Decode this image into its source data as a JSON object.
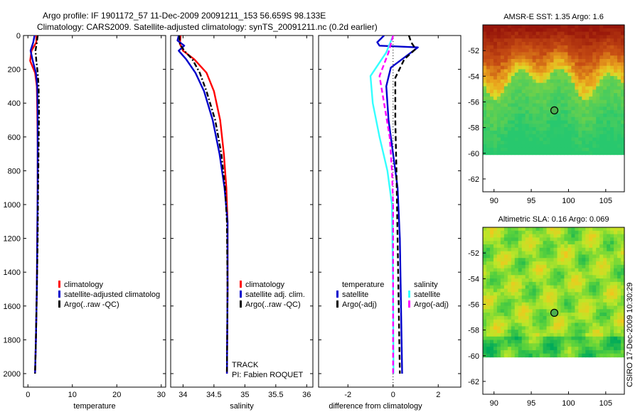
{
  "title_line1": "Argo profile: IF 1901172_57 11-Dec-2009 20091211_153 56.659S 98.133E",
  "title_line2": "Climatology: CARS2009. Satellite-adjusted climatology: synTS_20091211.nc (0.2d earlier)",
  "colors": {
    "red": "#ff0000",
    "blue": "#0000cc",
    "black": "#000000",
    "cyan": "#33ffff",
    "magenta": "#ff00ff"
  },
  "chart_data": [
    {
      "type": "line",
      "xlabel": "temperature",
      "xlim": [
        -1,
        31
      ],
      "ylim": [
        2080,
        0
      ],
      "xticks": [
        0,
        10,
        20,
        30
      ],
      "xtick_labels": [
        "0",
        "10",
        "20",
        "30"
      ],
      "yticks": [
        0,
        200,
        400,
        600,
        800,
        1000,
        1200,
        1400,
        1600,
        1800,
        2000
      ],
      "ytick_labels": [
        "0",
        "200",
        "400",
        "600",
        "800",
        "1000",
        "1200",
        "1400",
        "1600",
        "1800",
        "2000"
      ],
      "legend": [
        "climatology",
        "satellite-adjusted climatolog",
        "Argo(..raw -QC)"
      ],
      "series": [
        {
          "name": "climatology",
          "style": "solid",
          "color": "#ff0000",
          "points": [
            [
              1.9,
              0
            ],
            [
              1.9,
              40
            ],
            [
              0.8,
              90
            ],
            [
              0.5,
              150
            ],
            [
              1.6,
              220
            ],
            [
              2.0,
              300
            ],
            [
              2.1,
              450
            ],
            [
              2.2,
              650
            ],
            [
              2.2,
              900
            ],
            [
              2.1,
              1200
            ],
            [
              2.0,
              1500
            ],
            [
              1.8,
              1800
            ],
            [
              1.6,
              2000
            ]
          ]
        },
        {
          "name": "satellite-adjusted climatology",
          "style": "solid",
          "color": "#0000cc",
          "points": [
            [
              1.5,
              0
            ],
            [
              1.2,
              40
            ],
            [
              0.6,
              90
            ],
            [
              1.1,
              150
            ],
            [
              1.8,
              220
            ],
            [
              2.1,
              300
            ],
            [
              2.2,
              450
            ],
            [
              2.2,
              650
            ],
            [
              2.2,
              900
            ],
            [
              2.1,
              1200
            ],
            [
              2.0,
              1500
            ],
            [
              1.8,
              1800
            ],
            [
              1.6,
              2000
            ]
          ]
        },
        {
          "name": "Argo",
          "style": "dashdot",
          "color": "#000000",
          "points": [
            [
              2.2,
              0
            ],
            [
              2.0,
              40
            ],
            [
              1.7,
              90
            ],
            [
              1.9,
              150
            ],
            [
              2.2,
              220
            ],
            [
              2.4,
              300
            ],
            [
              2.5,
              450
            ],
            [
              2.4,
              650
            ],
            [
              2.3,
              900
            ],
            [
              2.2,
              1200
            ],
            [
              2.0,
              1500
            ],
            [
              1.8,
              1800
            ],
            [
              1.6,
              2000
            ]
          ]
        }
      ]
    },
    {
      "type": "line",
      "xlabel": "salinity",
      "xlim": [
        33.8,
        36.1
      ],
      "ylim": [
        2080,
        0
      ],
      "xticks": [
        34,
        34.5,
        35,
        35.5,
        36
      ],
      "xtick_labels": [
        "34",
        "34.5",
        "35",
        "35.5",
        "36"
      ],
      "legend": [
        "climatology",
        "satellite adj. clim.",
        "Argo(..raw -QC)"
      ],
      "annotations": [
        "TRACK",
        "PI: Fabien ROQUET"
      ],
      "series": [
        {
          "name": "climatology",
          "style": "solid",
          "color": "#ff0000",
          "points": [
            [
              33.96,
              0
            ],
            [
              33.95,
              50
            ],
            [
              34.0,
              90
            ],
            [
              34.18,
              140
            ],
            [
              34.38,
              220
            ],
            [
              34.5,
              330
            ],
            [
              34.6,
              500
            ],
            [
              34.66,
              700
            ],
            [
              34.7,
              900
            ],
            [
              34.72,
              1100
            ],
            [
              34.72,
              1500
            ],
            [
              34.71,
              2000
            ]
          ]
        },
        {
          "name": "satellite adj. clim.",
          "style": "solid",
          "color": "#0000cc",
          "points": [
            [
              33.93,
              0
            ],
            [
              33.91,
              30
            ],
            [
              34.02,
              60
            ],
            [
              33.93,
              90
            ],
            [
              34.05,
              140
            ],
            [
              34.2,
              220
            ],
            [
              34.34,
              330
            ],
            [
              34.48,
              500
            ],
            [
              34.59,
              700
            ],
            [
              34.67,
              900
            ],
            [
              34.72,
              1100
            ],
            [
              34.72,
              1500
            ],
            [
              34.71,
              2000
            ]
          ]
        },
        {
          "name": "Argo",
          "style": "dashdot",
          "color": "#000000",
          "points": [
            [
              33.94,
              0
            ],
            [
              33.95,
              50
            ],
            [
              34.02,
              90
            ],
            [
              34.15,
              140
            ],
            [
              34.27,
              220
            ],
            [
              34.38,
              330
            ],
            [
              34.52,
              500
            ],
            [
              34.62,
              700
            ],
            [
              34.68,
              900
            ],
            [
              34.71,
              1100
            ],
            [
              34.72,
              1500
            ],
            [
              34.71,
              2000
            ]
          ]
        }
      ]
    },
    {
      "type": "line",
      "xlabel": "difference from climatology",
      "xlim": [
        -3.3,
        3.0
      ],
      "ylim": [
        2080,
        0
      ],
      "xticks": [
        -2,
        0,
        2
      ],
      "xtick_labels": [
        "-2",
        "0",
        "2"
      ],
      "legend_headers": [
        "temperature",
        "salinity"
      ],
      "legend_temperature": [
        "satellite",
        "Argo(-adj)"
      ],
      "legend_salinity": [
        "satellite",
        "Argo(-adj)"
      ],
      "series": [
        {
          "name": "temperature satellite",
          "style": "solid",
          "color": "#0000cc",
          "points": [
            [
              -0.4,
              0
            ],
            [
              -0.7,
              40
            ],
            [
              -0.6,
              60
            ],
            [
              1.1,
              70
            ],
            [
              0.7,
              110
            ],
            [
              -0.1,
              190
            ],
            [
              -0.3,
              300
            ],
            [
              -0.2,
              500
            ],
            [
              0.0,
              700
            ],
            [
              0.2,
              900
            ],
            [
              0.3,
              1200
            ],
            [
              0.35,
              1600
            ],
            [
              0.4,
              2000
            ]
          ]
        },
        {
          "name": "temperature Argo(-adj)",
          "style": "dashed",
          "color": "#000000",
          "points": [
            [
              0.7,
              0
            ],
            [
              0.8,
              40
            ],
            [
              1.0,
              80
            ],
            [
              0.5,
              140
            ],
            [
              0.1,
              250
            ],
            [
              0.1,
              500
            ],
            [
              0.15,
              800
            ],
            [
              0.2,
              1200
            ],
            [
              0.25,
              1600
            ],
            [
              0.3,
              2000
            ]
          ]
        },
        {
          "name": "salinity satellite",
          "style": "solid",
          "color": "#33ffff",
          "points": [
            [
              0.0,
              0
            ],
            [
              -0.3,
              100
            ],
            [
              -1.0,
              240
            ],
            [
              -0.9,
              400
            ],
            [
              -0.6,
              600
            ],
            [
              -0.25,
              800
            ],
            [
              -0.05,
              1000
            ],
            [
              0.0,
              1500
            ],
            [
              0.02,
              2000
            ]
          ]
        },
        {
          "name": "salinity Argo(-adj)",
          "style": "dashed",
          "color": "#ff00ff",
          "points": [
            [
              0.0,
              0
            ],
            [
              -0.2,
              100
            ],
            [
              -0.6,
              240
            ],
            [
              -0.4,
              400
            ],
            [
              -0.15,
              600
            ],
            [
              -0.05,
              800
            ],
            [
              0.0,
              1000
            ],
            [
              0.0,
              1500
            ],
            [
              0.0,
              2000
            ]
          ]
        }
      ]
    },
    {
      "type": "heatmap",
      "title": "AMSR-E SST: 1.35 Argo: 1.6",
      "xlim": [
        88.5,
        107.5
      ],
      "ylim": [
        -63,
        -50
      ],
      "xticks": [
        90,
        95,
        100,
        105
      ],
      "yticks": [
        -52,
        -54,
        -56,
        -58,
        -60,
        -62
      ],
      "ytick_labels": [
        "-52",
        "-54",
        "-56",
        "-58",
        "-60",
        "-62"
      ],
      "marker": [
        98.1,
        -56.66
      ],
      "data_bottom": -60.1
    },
    {
      "type": "heatmap",
      "title": "Altimetric SLA: 0.16 Argo: 0.069",
      "xlim": [
        88.5,
        107.5
      ],
      "ylim": [
        -63,
        -50
      ],
      "xticks": [
        90,
        95,
        100,
        105
      ],
      "yticks": [
        -52,
        -54,
        -56,
        -58,
        -60,
        -62
      ],
      "ytick_labels": [
        "-52",
        "-54",
        "-56",
        "-58",
        "-60",
        "-62"
      ],
      "marker": [
        98.1,
        -56.66
      ],
      "data_bottom": -60.1
    }
  ],
  "footer_text": "CSIRO 17-Dec-2009 10:30:29"
}
